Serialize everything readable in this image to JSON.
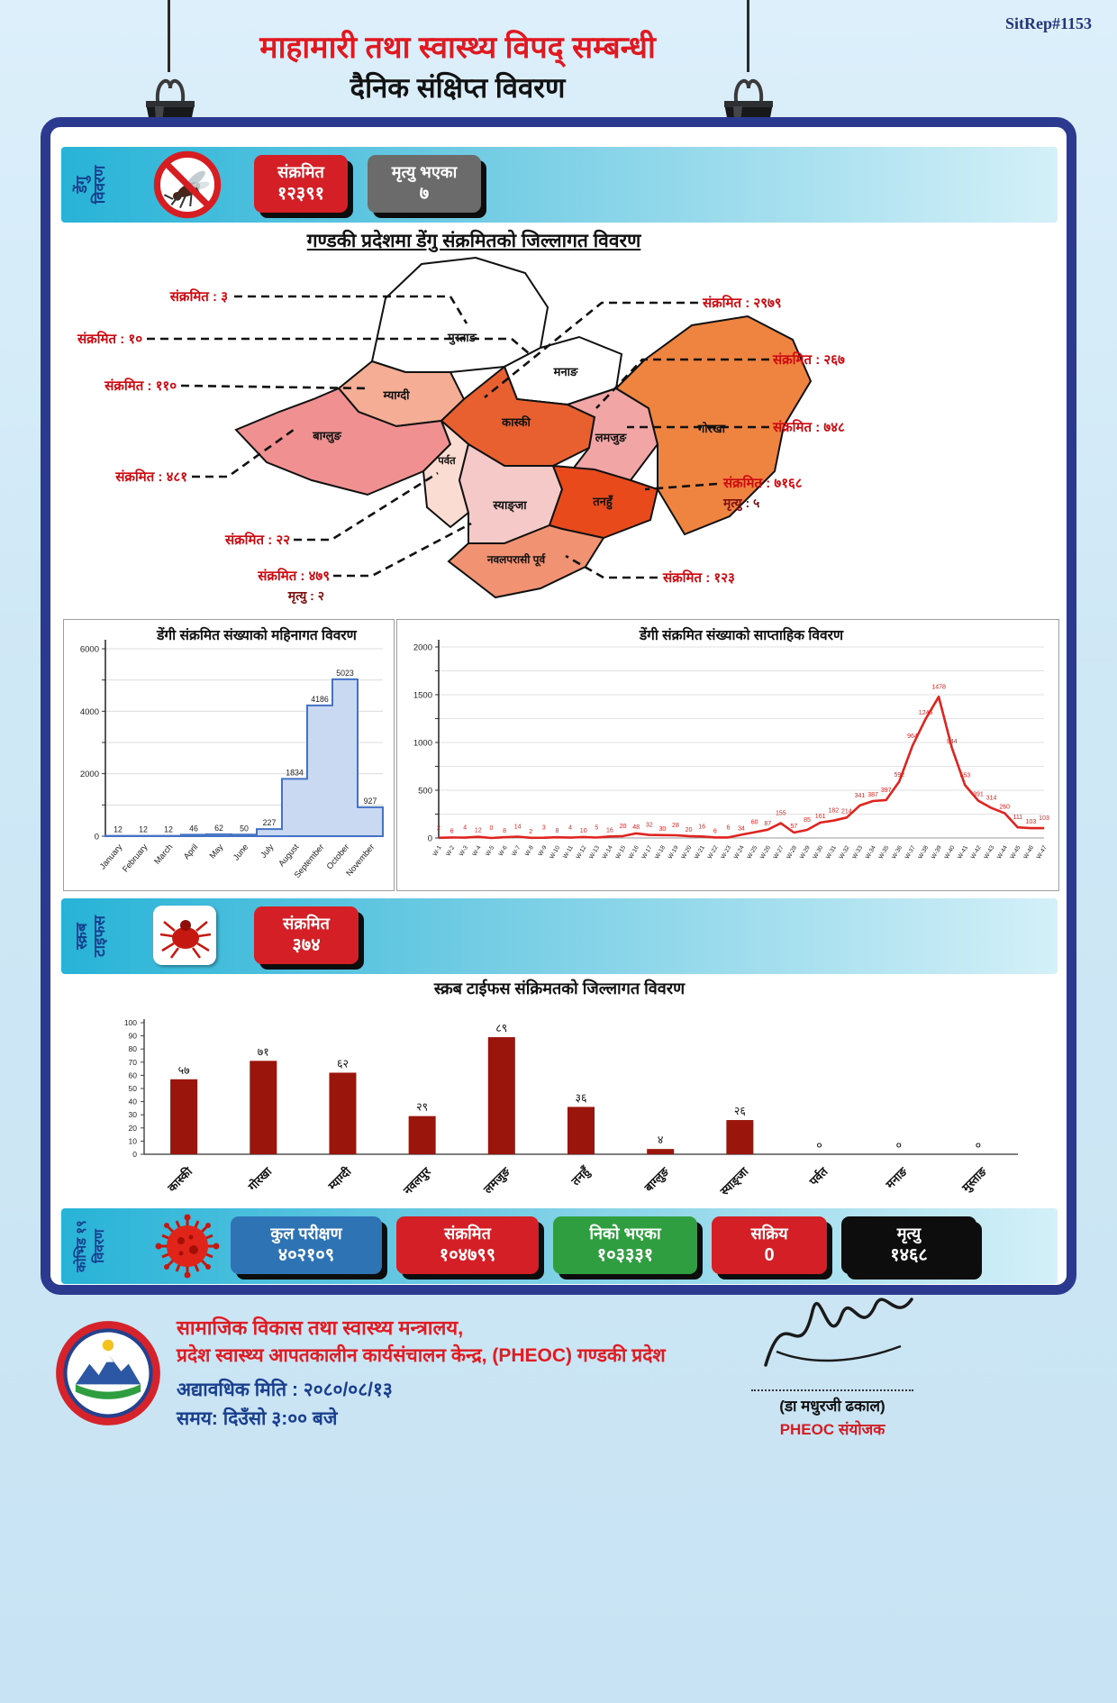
{
  "report": {
    "sitrep": "SitRep#1153",
    "title_line1": "माहामारी तथा स्वास्थ्य विपद् सम्बन्धी",
    "title_line2": "दैनिक संक्षिप्त विवरण"
  },
  "dengue": {
    "section_label": [
      "डेंगु",
      "विवरण"
    ],
    "infected_label": "संक्रमित",
    "infected_value": "१२३९१",
    "deaths_label": "मृत्यु भएका",
    "deaths_value": "७",
    "map": {
      "title": "गण्डकी प्रदेशमा डेंगु संक्रमितको जिल्लागत विवरण",
      "districts": [
        {
          "id": "mustang",
          "name": "मुस्ताङ",
          "callout": "संक्रमित : ३",
          "color": "#ffffff"
        },
        {
          "id": "manang",
          "name": "मनाङ",
          "callout": "संक्रमित : १०",
          "color": "#ffffff"
        },
        {
          "id": "myagdi",
          "name": "म्याग्दी",
          "callout": "संक्रमित : ११०",
          "color": "#f5ae95"
        },
        {
          "id": "baglung",
          "name": "बाग्लुङ",
          "callout": "संक्रमित : ४८१",
          "color": "#f09090"
        },
        {
          "id": "parbat",
          "name": "पर्वत",
          "callout": "संक्रमित : २२",
          "color": "#fadcd2"
        },
        {
          "id": "syangja",
          "name": "स्याङ्जा",
          "callout": "संक्रमित : ४७९",
          "deaths": "मृत्यु : २",
          "color": "#f6c9c9"
        },
        {
          "id": "kaski",
          "name": "कास्की",
          "callout": "संक्रमित : २९७९",
          "color": "#e8602f"
        },
        {
          "id": "lamjung",
          "name": "लमजुङ",
          "callout": "संक्रमित : २६७",
          "color": "#f2a5a5"
        },
        {
          "id": "gorkha",
          "name": "गोरखा",
          "callout": "संक्रमित : ७४८",
          "color": "#ef8440"
        },
        {
          "id": "tanahu",
          "name": "तनहुँ",
          "callout": "संक्रमित : ७१६८",
          "deaths": "मृत्यु : ५",
          "color": "#e84a1c"
        },
        {
          "id": "nawalparasi_east",
          "name": "नवलपरासी पूर्व",
          "callout": "संक्रमित : १२३",
          "color": "#f19272"
        }
      ]
    }
  },
  "scrub": {
    "section_label": [
      "स्क्रब",
      "टाइफस"
    ],
    "infected_label": "संक्रमित",
    "infected_value": "३७४"
  },
  "covid": {
    "section_label": [
      "कोभिड १९",
      "विवरण"
    ],
    "boxes": [
      {
        "label": "कुल परीक्षण",
        "value": "४०२१०९",
        "color": "#2e74b5"
      },
      {
        "label": "संक्रमित",
        "value": "१०४७९९",
        "color": "#d41f26"
      },
      {
        "label": "निको भएका",
        "value": "१०३३३१",
        "color": "#2f9e41"
      },
      {
        "label": "सक्रिय",
        "value": "0",
        "color": "#d41f26"
      },
      {
        "label": "मृत्यु",
        "value": "१४६८",
        "color": "#0d0d0d"
      }
    ]
  },
  "footer": {
    "ministry_line1": "सामाजिक विकास तथा स्वास्थ्य मन्त्रालय,",
    "ministry_line2": "प्रदेश स्वास्थ्य आपतकालीन कार्यसंचालन केन्द्र,  (PHEOC) गण्डकी प्रदेश",
    "updated_line": "अद्यावधिक मिति : २०८०/०८/१३",
    "time_line": "समय: दिउँसो ३:०० बजे",
    "signatory_name": "(डा मधुरजी ढकाल)",
    "signatory_title": "PHEOC संयोजक"
  },
  "chart_data": [
    {
      "type": "area",
      "title": "डेंगी संक्रमित संख्याको महिनागत विवरण",
      "categories": [
        "January",
        "February",
        "March",
        "April",
        "May",
        "June",
        "July",
        "August",
        "September",
        "October",
        "November"
      ],
      "values": [
        12,
        12,
        12,
        46,
        62,
        50,
        227,
        1834,
        4186,
        5023,
        927
      ],
      "ylim": [
        0,
        6000
      ],
      "grid_step": 1000,
      "ytick_labeled": 2000,
      "grid": true,
      "legend_position": "none",
      "area_fill": "#c9d9f2",
      "line_color": "#4472c4"
    },
    {
      "type": "line",
      "title": "डेंगी संक्रमित संख्याको साप्ताहिक विवरण",
      "categories": [
        "W-1",
        "W-2",
        "W-3",
        "W-4",
        "W-5",
        "W-6",
        "W-7",
        "W-8",
        "W-9",
        "W-10",
        "W-11",
        "W-12",
        "W-13",
        "W-14",
        "W-15",
        "W-16",
        "W-17",
        "W-18",
        "W-19",
        "W-20",
        "W-21",
        "W-22",
        "W-23",
        "W-24",
        "W-25",
        "W-26",
        "W-27",
        "W-28",
        "W-29",
        "W-30",
        "W-31",
        "W-32",
        "W-33",
        "W-34",
        "W-35",
        "W-36",
        "W-37",
        "W-38",
        "W-39",
        "W-40",
        "W-41",
        "W-42",
        "W-43",
        "W-44",
        "W-45",
        "W-46",
        "W-47"
      ],
      "values": [
        2,
        6,
        4,
        12,
        0,
        8,
        14,
        2,
        3,
        8,
        4,
        10,
        5,
        16,
        20,
        48,
        32,
        30,
        28,
        20,
        16,
        6,
        6,
        34,
        60,
        87,
        155,
        57,
        85,
        161,
        182,
        214,
        341,
        387,
        397,
        592,
        964,
        1246,
        1478,
        944,
        553,
        391,
        314,
        260,
        111,
        103,
        103
      ],
      "ylim": [
        0,
        2000
      ],
      "grid_step": 250,
      "ytick_labeled": 500,
      "grid": true,
      "legend_position": "none",
      "line_color": "#df231f"
    },
    {
      "type": "bar",
      "title": "स्क्रब टाईफस संक्रिमतको जिल्लागत विवरण",
      "categories": [
        "कास्की",
        "गोरखा",
        "म्याग्दी",
        "नवलपुर",
        "लमजुङ",
        "तनहुँ",
        "बाग्लुङ",
        "स्याङ्जा",
        "पर्वत",
        "मनाङ",
        "मुस्ताङ"
      ],
      "values": [
        57,
        71,
        62,
        29,
        89,
        36,
        4,
        26,
        0,
        0,
        0
      ],
      "value_labels": [
        "५७",
        "७१",
        "६२",
        "२९",
        "८९",
        "३६",
        "४",
        "२६",
        "०",
        "०",
        "०"
      ],
      "ylim": [
        0,
        100
      ],
      "ytick_step": 10,
      "grid": false,
      "bar_color": "#9a150c"
    }
  ],
  "colors": {
    "page_bg": "#cfe8f6",
    "poster_border": "#2b3a8f",
    "band_gradient_start": "#27b3d7",
    "band_gradient_end": "#d4f0f8",
    "title_red": "#e0181f",
    "callout_red": "#cf0a10",
    "stat_red": "#d41f26",
    "stat_gray": "#6b6b6b",
    "stat_blue": "#2e74b5",
    "stat_green": "#2f9e41",
    "stat_black": "#0d0d0d",
    "bar_maroon": "#9a150c",
    "line_red": "#df231f",
    "sitrep_blue": "#23357c"
  }
}
